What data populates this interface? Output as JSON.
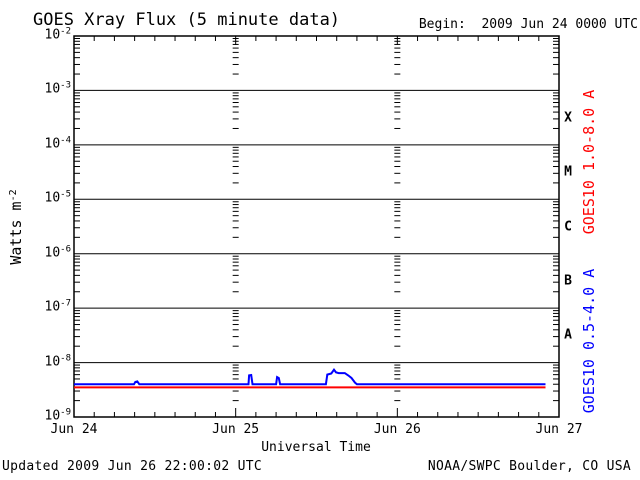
{
  "page": {
    "title": "GOES Xray Flux (5 minute data)",
    "begin_label": "Begin:  2009 Jun 24 0000 UTC",
    "footer_left": "Updated 2009 Jun 26 22:00:02 UTC",
    "footer_right": "NOAA/SWPC Boulder, CO USA"
  },
  "chart_data": {
    "type": "line",
    "title": "GOES Xray Flux (5 minute data)",
    "begin_label": "Begin:  2009 Jun 24 0000 UTC",
    "xlabel": "Universal Time",
    "ylabel_base": "Watts m",
    "ylabel_exponent": "-2",
    "footer_left": "Updated 2009 Jun 26 22:00:02 UTC",
    "footer_right": "NOAA/SWPC Boulder, CO USA",
    "x_axis": {
      "day_labels": [
        "Jun 24",
        "Jun 25",
        "Jun 26",
        "Jun 27"
      ],
      "hours_total": 72,
      "minor_tick_hours": 3,
      "major_tick_hours": 24
    },
    "y_axis": {
      "scale": "log",
      "tick_base": "10",
      "exponents": [
        -2,
        -3,
        -4,
        -5,
        -6,
        -7,
        -8,
        -9
      ],
      "ylim": [
        1e-09,
        0.01
      ],
      "grid": "solid-horizontal-decades"
    },
    "flare_classes": [
      "X",
      "M",
      "C",
      "B",
      "A"
    ],
    "colors": {
      "axis": "#000000",
      "long_band": "#ff0000",
      "short_band": "#0000ff"
    },
    "legend_position": "right-vertical",
    "series": [
      {
        "name": "GOES10 1.0-8.0 A",
        "color": "#ff0000",
        "points_hours_flux": [
          [
            0,
            3.5e-09
          ],
          [
            70,
            3.5e-09
          ]
        ]
      },
      {
        "name": "GOES10 0.5-4.0 A",
        "color": "#0000ff",
        "points_hours_flux": [
          [
            0,
            4e-09
          ],
          [
            8.9,
            4e-09
          ],
          [
            9.1,
            4.4e-09
          ],
          [
            9.4,
            4.5e-09
          ],
          [
            9.7,
            4e-09
          ],
          [
            25.9,
            4e-09
          ],
          [
            26.0,
            5.8e-09
          ],
          [
            26.3,
            5.9e-09
          ],
          [
            26.5,
            4e-09
          ],
          [
            30.0,
            4e-09
          ],
          [
            30.15,
            5.4e-09
          ],
          [
            30.4,
            5.2e-09
          ],
          [
            30.6,
            4e-09
          ],
          [
            37.4,
            4e-09
          ],
          [
            37.6,
            6e-09
          ],
          [
            38.2,
            6.3e-09
          ],
          [
            38.6,
            7.4e-09
          ],
          [
            38.9,
            6.6e-09
          ],
          [
            39.3,
            6.4e-09
          ],
          [
            40.2,
            6.4e-09
          ],
          [
            40.7,
            5.8e-09
          ],
          [
            41.2,
            5.2e-09
          ],
          [
            41.7,
            4.3e-09
          ],
          [
            42.0,
            4e-09
          ],
          [
            70,
            4e-09
          ]
        ]
      }
    ]
  }
}
